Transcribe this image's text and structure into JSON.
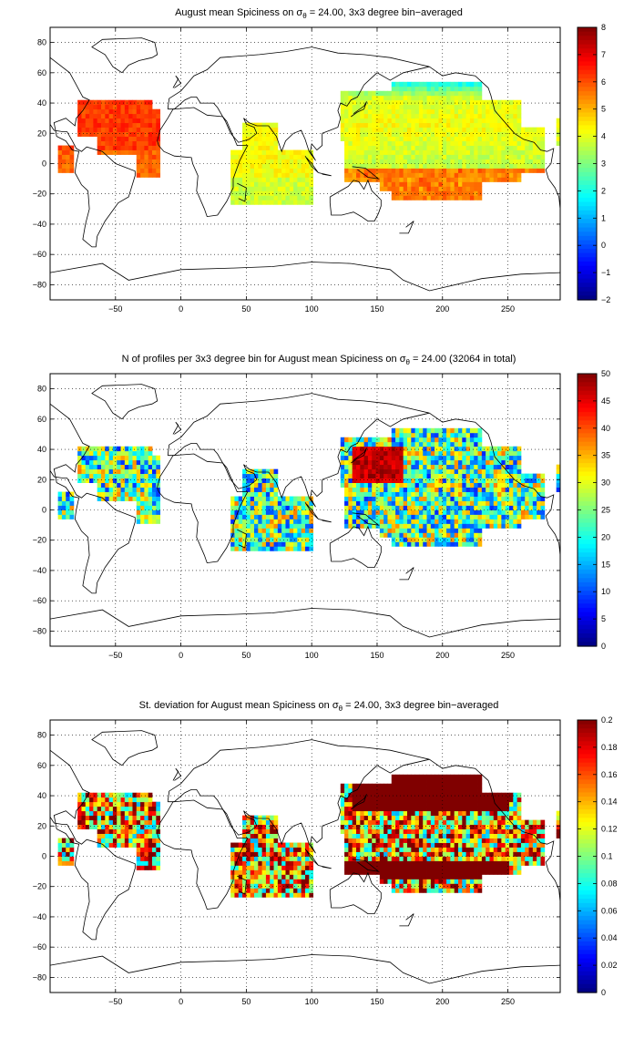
{
  "colors": {
    "axis": "#000000",
    "grid": "#000000",
    "coast": "#000000",
    "background": "#ffffff"
  },
  "chart_data": [
    {
      "type": "heatmap",
      "title_prefix": "August mean Spiciness on ",
      "title_sigma": "σ",
      "title_sub": "θ",
      "title_suffix": " = 24.00, 3x3 degree bin−averaged",
      "colormap": "jet",
      "colorbar_range": [
        -2,
        8
      ],
      "colorbar_ticks": [
        "8",
        "7",
        "6",
        "5",
        "4",
        "3",
        "2",
        "1",
        "0",
        "−1",
        "−2"
      ],
      "x_ticks": [
        "−50",
        "0",
        "50",
        "100",
        "150",
        "200",
        "250"
      ],
      "y_ticks": [
        "80",
        "60",
        "40",
        "20",
        "0",
        "−20",
        "−40",
        "−60",
        "−80"
      ],
      "xlim": [
        -100,
        290
      ],
      "ylim": [
        -90,
        90
      ],
      "grid": true
    },
    {
      "type": "heatmap",
      "title_prefix": "N of profiles per 3x3 degree bin for August mean Spiciness on ",
      "title_sigma": "σ",
      "title_sub": "θ",
      "title_suffix": " = 24.00 (32064 in total)",
      "colormap": "jet",
      "colorbar_range": [
        0,
        50
      ],
      "colorbar_ticks": [
        "50",
        "45",
        "40",
        "35",
        "30",
        "25",
        "20",
        "15",
        "10",
        "5",
        "0"
      ],
      "x_ticks": [
        "−50",
        "0",
        "50",
        "100",
        "150",
        "200",
        "250"
      ],
      "y_ticks": [
        "80",
        "60",
        "40",
        "20",
        "0",
        "−20",
        "−40",
        "−60",
        "−80"
      ],
      "xlim": [
        -100,
        290
      ],
      "ylim": [
        -90,
        90
      ],
      "grid": true
    },
    {
      "type": "heatmap",
      "title_prefix": "St. deviation for August mean Spiciness on ",
      "title_sigma": "σ",
      "title_sub": "θ",
      "title_suffix": " = 24.00, 3x3 degree bin−averaged",
      "colormap": "jet",
      "colorbar_range": [
        0,
        0.2
      ],
      "colorbar_ticks": [
        "0.2",
        "0.18",
        "0.16",
        "0.14",
        "0.12",
        "0.1",
        "0.08",
        "0.06",
        "0.04",
        "0.02",
        "0"
      ],
      "x_ticks": [
        "−50",
        "0",
        "50",
        "100",
        "150",
        "200",
        "250"
      ],
      "y_ticks": [
        "80",
        "60",
        "40",
        "20",
        "0",
        "−20",
        "−40",
        "−60",
        "−80"
      ],
      "xlim": [
        -100,
        290
      ],
      "ylim": [
        -90,
        90
      ],
      "grid": true
    }
  ]
}
